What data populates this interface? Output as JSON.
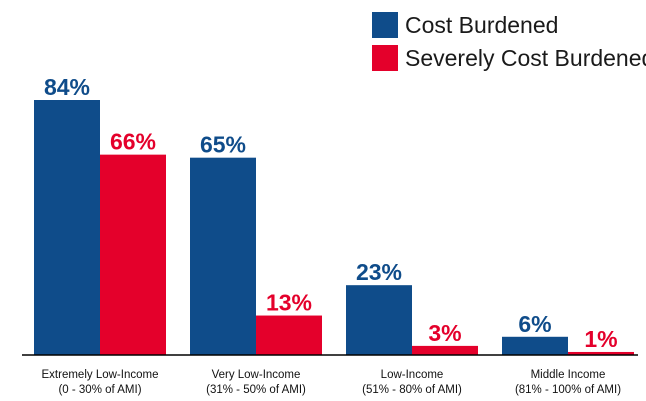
{
  "chart_data": {
    "type": "bar",
    "categories": [
      [
        "Extremely Low-Income",
        "(0 - 30% of AMI)"
      ],
      [
        "Very Low-Income",
        "(31% - 50% of AMI)"
      ],
      [
        "Low-Income",
        "(51% - 80% of AMI)"
      ],
      [
        "Middle Income",
        "(81% - 100% of AMI)"
      ]
    ],
    "series": [
      {
        "name": "Cost Burdened",
        "values": [
          84,
          65,
          23,
          6
        ],
        "labels": [
          "84%",
          "65%",
          "23%",
          "6%"
        ],
        "color": "#0f4c8a"
      },
      {
        "name": "Severely Cost Burdened",
        "values": [
          66,
          13,
          3,
          1
        ],
        "labels": [
          "66%",
          "13%",
          "3%",
          "1%"
        ],
        "color": "#e4002b"
      }
    ],
    "ylim": [
      0,
      84
    ],
    "unit": "%",
    "grid": false,
    "legend_position": "top-right"
  }
}
